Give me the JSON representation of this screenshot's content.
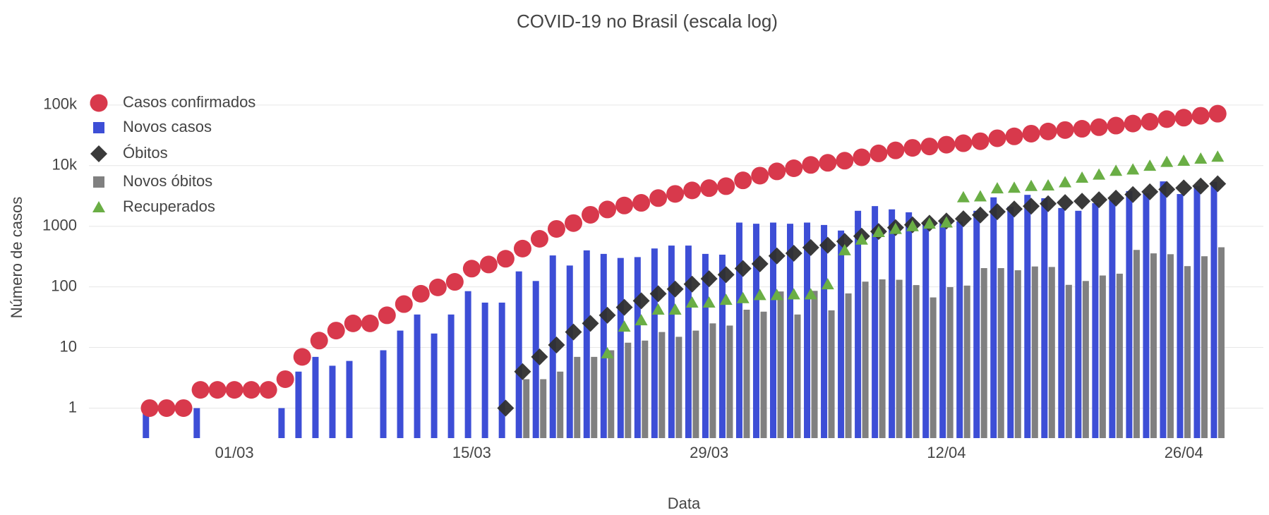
{
  "chart_data": {
    "type": "combo",
    "title": "COVID-19 no Brasil (escala log)",
    "xlabel": "Data",
    "ylabel": "Número de casos",
    "log_y": true,
    "grid": true,
    "legend": "top-left",
    "ylim": [
      0.32,
      200000
    ],
    "yticks": [
      1,
      10,
      100,
      1000,
      {
        "value": 10000,
        "label": "10k"
      },
      {
        "value": 100000,
        "label": "100k"
      }
    ],
    "categories": [
      null,
      null,
      null,
      null,
      null,
      "01/03",
      null,
      null,
      null,
      null,
      null,
      null,
      null,
      null,
      null,
      null,
      null,
      null,
      null,
      "15/03",
      null,
      null,
      null,
      null,
      null,
      null,
      null,
      null,
      null,
      null,
      null,
      null,
      null,
      "29/03",
      null,
      null,
      null,
      null,
      null,
      null,
      null,
      null,
      null,
      null,
      null,
      null,
      null,
      "12/04",
      null,
      null,
      null,
      null,
      null,
      null,
      null,
      null,
      null,
      null,
      null,
      null,
      null,
      "26/04",
      null,
      null
    ],
    "series": [
      {
        "name": "Casos confirmados",
        "type": "scatter",
        "symbol": "circle",
        "color": "#d8394c",
        "values": [
          1,
          1,
          1,
          2,
          2,
          2,
          2,
          2,
          3,
          7,
          13,
          19,
          25,
          25,
          34,
          52,
          77,
          98,
          121,
          200,
          234,
          291,
          428,
          621,
          904,
          1128,
          1546,
          1891,
          2201,
          2433,
          2915,
          3417,
          3904,
          4256,
          4579,
          5717,
          6836,
          8044,
          9056,
          10278,
          11130,
          12056,
          13717,
          15927,
          17857,
          19638,
          20727,
          22169,
          23430,
          25262,
          28320,
          30425,
          33682,
          36599,
          38654,
          40581,
          43079,
          45757,
          49492,
          52995,
          58509,
          61888,
          66501,
          71886
        ]
      },
      {
        "name": "Novos casos",
        "type": "bar",
        "symbol": "square",
        "color": "#3d4ed6",
        "values": [
          1,
          null,
          null,
          1,
          null,
          null,
          null,
          null,
          1,
          4,
          7,
          5,
          6,
          null,
          9,
          19,
          35,
          17,
          35,
          85,
          55,
          55,
          180,
          125,
          330,
          225,
          400,
          350,
          300,
          310,
          430,
          480,
          480,
          350,
          340,
          1150,
          1100,
          1150,
          1100,
          1150,
          1050,
          850,
          1800,
          2150,
          1900,
          1700,
          1100,
          1200,
          1200,
          1800,
          3000,
          2100,
          3300,
          2900,
          2000,
          1800,
          2400,
          2700,
          3800,
          3500,
          5500,
          3400,
          4600,
          5400
        ]
      },
      {
        "name": "Óbitos",
        "type": "scatter",
        "symbol": "diamond",
        "color": "#2f2f2f",
        "values": [
          null,
          null,
          null,
          null,
          null,
          null,
          null,
          null,
          null,
          null,
          null,
          null,
          null,
          null,
          null,
          null,
          null,
          null,
          null,
          null,
          null,
          1,
          4,
          7,
          11,
          18,
          25,
          34,
          46,
          59,
          77,
          92,
          111,
          136,
          159,
          201,
          240,
          324,
          359,
          445,
          486,
          564,
          686,
          819,
          950,
          1057,
          1124,
          1223,
          1328,
          1532,
          1736,
          1924,
          2141,
          2354,
          2462,
          2587,
          2741,
          2906,
          3331,
          3704,
          4057,
          4286,
          4603,
          5017
        ]
      },
      {
        "name": "Novos óbitos",
        "type": "bar",
        "symbol": "square",
        "color": "#808080",
        "values": [
          null,
          null,
          null,
          null,
          null,
          null,
          null,
          null,
          null,
          null,
          null,
          null,
          null,
          null,
          null,
          null,
          null,
          null,
          null,
          null,
          null,
          null,
          3,
          3,
          4,
          7,
          7,
          9,
          12,
          13,
          18,
          15,
          19,
          25,
          23,
          42,
          39,
          84,
          35,
          86,
          41,
          78,
          122,
          133,
          131,
          107,
          67,
          99,
          105,
          204,
          204,
          188,
          217,
          213,
          108,
          125,
          154,
          165,
          407,
          357,
          346,
          220,
          320,
          450
        ]
      },
      {
        "name": "Recuperados",
        "type": "scatter",
        "symbol": "triangle-up",
        "color": "#6aae45",
        "values": [
          null,
          null,
          null,
          null,
          null,
          null,
          null,
          null,
          null,
          null,
          null,
          null,
          null,
          null,
          null,
          null,
          null,
          null,
          null,
          null,
          null,
          null,
          null,
          null,
          null,
          null,
          null,
          8,
          22,
          28,
          42,
          42,
          55,
          55,
          61,
          65,
          73,
          73,
          75,
          75,
          110,
          400,
          600,
          800,
          900,
          1000,
          1100,
          1150,
          3000,
          3100,
          4200,
          4300,
          4600,
          4700,
          5300,
          6300,
          7100,
          8200,
          8600,
          9900,
          11500,
          12000,
          13000,
          14000
        ]
      }
    ]
  }
}
